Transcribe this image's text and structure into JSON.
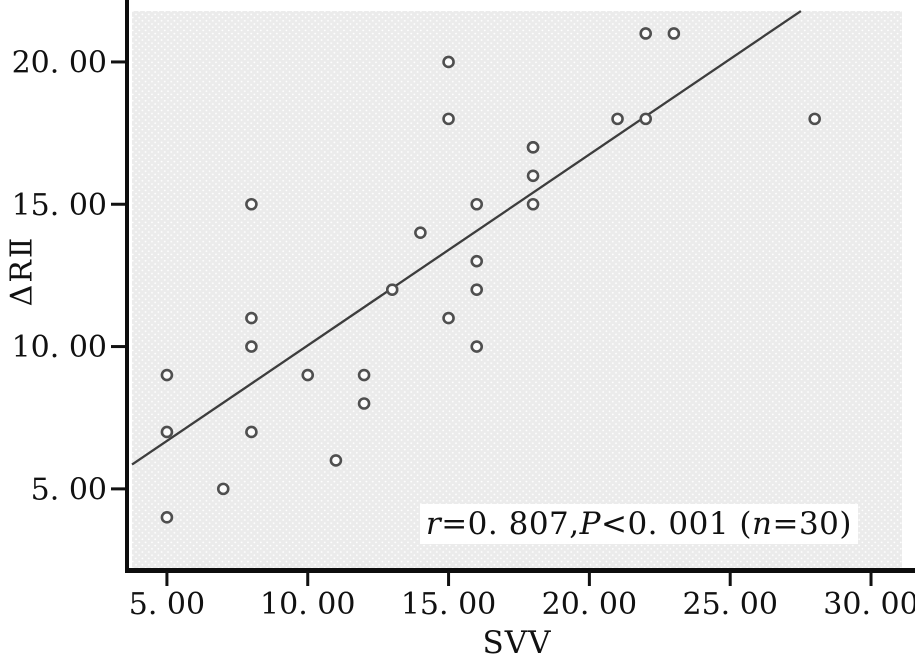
{
  "chart_data": {
    "type": "scatter",
    "title": "",
    "xlabel": "SVV",
    "ylabel": "ΔRⅡ",
    "xlim": [
      3.76,
      31.1
    ],
    "ylim": [
      2.22,
      21.79
    ],
    "grid": false,
    "legend": null,
    "x_ticks": {
      "values": [
        5,
        10,
        15,
        20,
        25,
        30
      ],
      "labels": [
        "5. 00",
        "10. 00",
        "15. 00",
        "20. 00",
        "25. 00",
        "30. 00"
      ]
    },
    "y_ticks": {
      "values": [
        5,
        10,
        15,
        20
      ],
      "labels": [
        "5. 00",
        "10. 00",
        "15. 00",
        "20. 00"
      ]
    },
    "points": [
      [
        5,
        4
      ],
      [
        5,
        7
      ],
      [
        5,
        9
      ],
      [
        7,
        5
      ],
      [
        8,
        7
      ],
      [
        8,
        10
      ],
      [
        8,
        11
      ],
      [
        8,
        15
      ],
      [
        10,
        9
      ],
      [
        11,
        6
      ],
      [
        12,
        8
      ],
      [
        12,
        9
      ],
      [
        13,
        12
      ],
      [
        14,
        14
      ],
      [
        15,
        11
      ],
      [
        15,
        18
      ],
      [
        15,
        20
      ],
      [
        16,
        10
      ],
      [
        16,
        12
      ],
      [
        16,
        13
      ],
      [
        16,
        15
      ],
      [
        18,
        15
      ],
      [
        18,
        16
      ],
      [
        18,
        17
      ],
      [
        18,
        17
      ],
      [
        21,
        18
      ],
      [
        22,
        18
      ],
      [
        22,
        21
      ],
      [
        23,
        21
      ],
      [
        28,
        18
      ]
    ],
    "regression_line": {
      "slope": 0.671,
      "intercept": 3.33,
      "x_start": 3.76,
      "x_end": 27.51
    },
    "stats_annotation_full": "r=0. 807,P<0. 001 (n=30)",
    "stats": {
      "r": "0. 807",
      "p": "<0. 001",
      "n": "30"
    },
    "colors": {
      "plot_bg": "#ebebeb",
      "plot_bg_dot": "#ffffff",
      "axis": "#0d0d0d",
      "tick": "#111111",
      "point_stroke": "#4f4f4f",
      "point_fill": "#fbfbfb",
      "regression_line": "#3d3d3d",
      "text": "#111111"
    }
  },
  "annotation": {
    "parts": [
      {
        "text": "r",
        "italic": true
      },
      {
        "text": "=0. 807,",
        "italic": false
      },
      {
        "text": "P",
        "italic": true
      },
      {
        "text": "<0. 001 (",
        "italic": false
      },
      {
        "text": "n",
        "italic": true
      },
      {
        "text": "=30)",
        "italic": false
      }
    ]
  }
}
